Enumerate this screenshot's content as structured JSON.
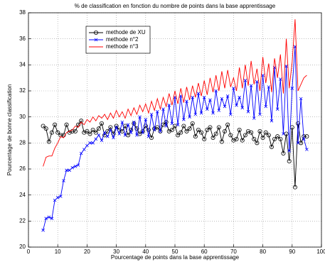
{
  "chart_data": {
    "type": "line",
    "title": "% de classification en fonction du nombre de points dans la base apprentissage",
    "x_label": "Pourcentage de points dans la base apprentissage",
    "y_label": "Pourcentage de bonne classification",
    "x": [
      5,
      6,
      7,
      8,
      9,
      10,
      11,
      12,
      13,
      14,
      15,
      16,
      17,
      18,
      19,
      20,
      21,
      22,
      23,
      24,
      25,
      26,
      27,
      28,
      29,
      30,
      31,
      32,
      33,
      34,
      35,
      36,
      37,
      38,
      39,
      40,
      41,
      42,
      43,
      44,
      45,
      46,
      47,
      48,
      49,
      50,
      51,
      52,
      53,
      54,
      55,
      56,
      57,
      58,
      59,
      60,
      61,
      62,
      63,
      64,
      65,
      66,
      67,
      68,
      69,
      70,
      71,
      72,
      73,
      74,
      75,
      76,
      77,
      78,
      79,
      80,
      81,
      82,
      83,
      84,
      85,
      86,
      87,
      88,
      89,
      90,
      91,
      92,
      93,
      94,
      95
    ],
    "series": [
      {
        "name": "methode de XU",
        "color": "#000000",
        "marker": "circle",
        "values": [
          29.3,
          29.1,
          28.1,
          28.8,
          29.4,
          28.8,
          28.6,
          28.6,
          29.4,
          28.8,
          28.9,
          28.9,
          29.4,
          29.7,
          28.8,
          28.9,
          28.7,
          29.0,
          28.8,
          29.1,
          29.5,
          28.6,
          28.9,
          29.2,
          28.7,
          29.3,
          29.0,
          28.9,
          29.3,
          28.6,
          29.0,
          29.5,
          29.1,
          28.7,
          28.9,
          29.3,
          29.0,
          28.4,
          29.1,
          29.2,
          28.9,
          29.4,
          29.6,
          28.9,
          29.0,
          29.3,
          28.6,
          28.8,
          29.3,
          28.9,
          29.1,
          29.5,
          28.5,
          29.0,
          28.8,
          28.3,
          29.0,
          29.2,
          28.4,
          28.7,
          29.2,
          28.1,
          28.9,
          29.4,
          28.6,
          28.2,
          28.3,
          29.0,
          28.2,
          28.6,
          28.9,
          28.8,
          28.3,
          28.0,
          28.9,
          28.4,
          28.8,
          28.6,
          27.7,
          28.3,
          28.5,
          28.3,
          27.2,
          28.7,
          26.6,
          29.2,
          24.6,
          29.5,
          28.0,
          28.5,
          28.5
        ]
      },
      {
        "name": "methode n°2",
        "color": "#0000ff",
        "marker": "x",
        "values": [
          21.3,
          22.2,
          22.3,
          22.2,
          23.6,
          23.8,
          23.9,
          25.1,
          25.9,
          25.9,
          26.1,
          26.2,
          26.3,
          27.2,
          27.5,
          27.8,
          28.0,
          28.0,
          28.3,
          28.6,
          28.2,
          28.8,
          28.5,
          29.0,
          28.4,
          29.2,
          28.7,
          29.6,
          28.6,
          29.4,
          28.8,
          29.6,
          28.6,
          30.0,
          28.8,
          29.8,
          28.5,
          30.2,
          29.0,
          30.4,
          28.9,
          30.6,
          29.3,
          30.9,
          29.5,
          31.5,
          29.4,
          31.6,
          29.8,
          31.2,
          30.0,
          31.5,
          30.2,
          31.8,
          30.3,
          31.5,
          30.6,
          31.3,
          30.3,
          32.0,
          30.5,
          31.4,
          30.8,
          31.6,
          30.2,
          32.2,
          30.9,
          31.5,
          30.7,
          32.8,
          30.4,
          32.4,
          29.9,
          32.7,
          30.2,
          33.2,
          30.8,
          32.3,
          29.7,
          33.8,
          30.6,
          32.9,
          28.7,
          33.9,
          27.4,
          32.2,
          35.4,
          28.0,
          31.4,
          28.3,
          27.5
        ]
      },
      {
        "name": "methode n°3",
        "color": "#ff0000",
        "marker": "none",
        "values": [
          26.2,
          26.9,
          27.0,
          27.0,
          27.6,
          28.0,
          28.5,
          28.4,
          28.8,
          28.9,
          29.0,
          29.3,
          29.2,
          29.6,
          29.4,
          29.8,
          29.6,
          30.0,
          29.7,
          30.1,
          29.9,
          30.2,
          29.8,
          30.3,
          29.9,
          30.5,
          30.0,
          30.4,
          29.9,
          30.6,
          30.1,
          30.7,
          30.2,
          30.9,
          30.4,
          31.0,
          30.3,
          31.2,
          30.5,
          31.4,
          30.6,
          31.5,
          30.8,
          31.8,
          30.9,
          32.0,
          31.0,
          32.2,
          31.1,
          32.3,
          31.3,
          32.4,
          31.5,
          32.6,
          31.6,
          32.8,
          31.7,
          33.0,
          31.9,
          33.2,
          32.0,
          33.5,
          32.2,
          33.6,
          32.3,
          33.0,
          32.0,
          33.8,
          32.2,
          34.0,
          32.4,
          34.3,
          32.5,
          33.7,
          32.0,
          34.6,
          32.6,
          34.1,
          31.9,
          34.5,
          33.0,
          34.8,
          31.8,
          36.0,
          32.2,
          34.2,
          37.5,
          32.0,
          32.5,
          33.0,
          33.2
        ]
      }
    ],
    "xlim": [
      0,
      100
    ],
    "xticks": [
      0,
      10,
      20,
      30,
      40,
      50,
      60,
      70,
      80,
      90,
      100
    ],
    "ylim": [
      20,
      38
    ],
    "yticks": [
      20,
      22,
      24,
      26,
      28,
      30,
      32,
      34,
      36,
      38
    ],
    "grid": true,
    "legend": "upper-left"
  }
}
